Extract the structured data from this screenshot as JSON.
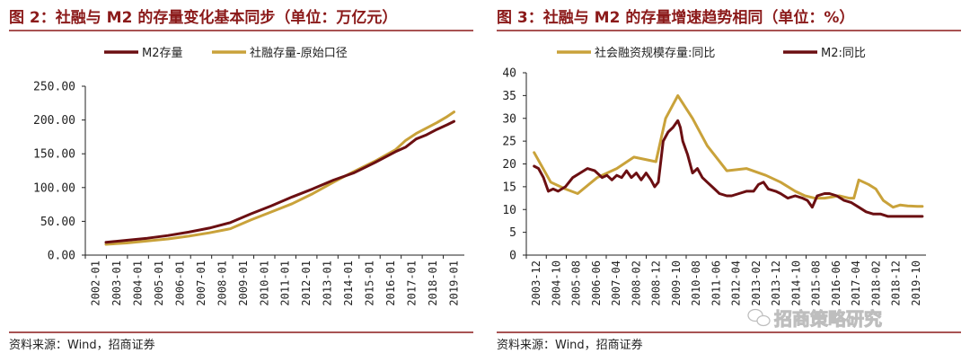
{
  "colors": {
    "m2": "#6b0f12",
    "gold": "#c9a23a",
    "rule": "#8b1a1a"
  },
  "watermark": {
    "icon": "wechat-icon",
    "text": "招商策略研究"
  },
  "chart_data": [
    {
      "type": "line",
      "title": "图 2：社融与 M2 的存量变化基本同步（单位：万亿元）",
      "source": "资料来源：Wind，招商证券",
      "x_tick_labels": [
        "2002-01",
        "2003-01",
        "2004-01",
        "2005-01",
        "2006-01",
        "2007-01",
        "2008-01",
        "2009-01",
        "2010-01",
        "2011-01",
        "2012-01",
        "2013-01",
        "2014-01",
        "2015-01",
        "2016-01",
        "2017-01",
        "2018-01",
        "2019-01"
      ],
      "y_tick_labels": [
        "0.00",
        "50.00",
        "100.00",
        "150.00",
        "200.00",
        "250.00"
      ],
      "ylim": [
        0,
        250
      ],
      "xlim": [
        2002.0,
        2020.33
      ],
      "legend_position": "top",
      "grid": false,
      "series": [
        {
          "name": "M2存量",
          "color_key": "m2",
          "x": [
            2003.0,
            2004.0,
            2005.0,
            2006.0,
            2007.0,
            2008.0,
            2009.0,
            2010.0,
            2011.0,
            2012.0,
            2013.0,
            2014.0,
            2015.0,
            2016.0,
            2017.0,
            2017.5,
            2018.0,
            2018.5,
            2019.0,
            2019.5,
            2019.83
          ],
          "y": [
            19,
            22,
            25,
            29,
            34,
            40,
            48,
            61,
            73,
            86,
            98,
            111,
            122,
            137,
            153,
            160,
            172,
            178,
            186,
            193,
            198
          ]
        },
        {
          "name": "社融存量-原始口径",
          "color_key": "gold",
          "x": [
            2003.0,
            2004.0,
            2005.0,
            2006.0,
            2007.0,
            2008.0,
            2009.0,
            2010.0,
            2011.0,
            2012.0,
            2013.0,
            2014.0,
            2015.0,
            2016.0,
            2017.0,
            2017.5,
            2018.0,
            2018.5,
            2019.0,
            2019.5,
            2019.83
          ],
          "y": [
            16,
            18,
            21,
            24,
            28,
            33,
            39,
            52,
            64,
            76,
            91,
            108,
            124,
            139,
            156,
            170,
            180,
            188,
            196,
            205,
            212
          ]
        }
      ]
    },
    {
      "type": "line",
      "title": "图 3：社融与 M2 的存量增速趋势相同（单位：%）",
      "source": "资料来源：Wind，招商证券",
      "x_tick_labels": [
        "2003-12",
        "2004-10",
        "2005-08",
        "2006-06",
        "2007-04",
        "2008-02",
        "2008-12",
        "2009-10",
        "2010-08",
        "2011-06",
        "2012-04",
        "2013-02",
        "2013-12",
        "2014-10",
        "2015-08",
        "2016-06",
        "2017-04",
        "2018-02",
        "2018-12",
        "2019-10"
      ],
      "y_tick_labels": [
        "0",
        "5",
        "10",
        "15",
        "20",
        "25",
        "30",
        "35",
        "40"
      ],
      "ylim": [
        0,
        40
      ],
      "xlim": [
        2003.6,
        2019.95
      ],
      "legend_position": "top",
      "grid": false,
      "series": [
        {
          "name": "社会融资规模存量:同比",
          "color_key": "gold",
          "x": [
            2003.92,
            2004.6,
            2005.2,
            2005.7,
            2006.5,
            2007.3,
            2008.0,
            2008.9,
            2009.3,
            2009.8,
            2010.4,
            2011.0,
            2011.8,
            2012.6,
            2013.4,
            2014.0,
            2014.6,
            2015.0,
            2015.4,
            2015.8,
            2016.4,
            2016.8,
            2017.0,
            2017.2,
            2017.6,
            2017.9,
            2018.2,
            2018.6,
            2018.9,
            2019.2,
            2019.6,
            2019.8
          ],
          "y": [
            22.5,
            16,
            14.5,
            13.5,
            17,
            19,
            21.5,
            20.5,
            30,
            35,
            30,
            24,
            18.5,
            19,
            17.5,
            16,
            14,
            13,
            12.5,
            12.5,
            13,
            12.5,
            12.5,
            16.5,
            15.5,
            14.5,
            12,
            10.5,
            11,
            10.8,
            10.7,
            10.7
          ]
        },
        {
          "name": "M2:同比",
          "color_key": "m2",
          "x": [
            2003.92,
            2004.1,
            2004.3,
            2004.5,
            2004.7,
            2004.9,
            2005.2,
            2005.5,
            2005.8,
            2006.1,
            2006.4,
            2006.7,
            2006.9,
            2007.1,
            2007.3,
            2007.5,
            2007.7,
            2007.9,
            2008.1,
            2008.3,
            2008.5,
            2008.7,
            2008.85,
            2009.0,
            2009.2,
            2009.4,
            2009.6,
            2009.8,
            2009.9,
            2010.0,
            2010.2,
            2010.4,
            2010.6,
            2010.8,
            2011.0,
            2011.2,
            2011.5,
            2011.8,
            2012.0,
            2012.3,
            2012.6,
            2012.9,
            2013.1,
            2013.3,
            2013.5,
            2013.8,
            2014.0,
            2014.3,
            2014.6,
            2014.9,
            2015.1,
            2015.3,
            2015.5,
            2015.8,
            2016.0,
            2016.3,
            2016.6,
            2016.9,
            2017.2,
            2017.5,
            2017.8,
            2018.1,
            2018.4,
            2018.7,
            2019.0,
            2019.3,
            2019.6,
            2019.8
          ],
          "y": [
            19.5,
            19,
            17,
            14,
            14.5,
            14,
            15,
            17,
            18,
            19,
            18.5,
            17,
            17.5,
            16.5,
            17.5,
            17,
            18.5,
            17,
            18,
            16.5,
            18,
            16.5,
            15,
            16,
            25,
            27,
            28,
            29.5,
            28,
            25,
            22,
            18,
            19,
            17,
            16,
            15,
            13.5,
            13,
            13,
            13.5,
            14,
            14,
            15.5,
            16,
            14.5,
            14,
            13.5,
            12.5,
            13,
            12.5,
            12,
            10.5,
            13,
            13.5,
            13.5,
            13,
            12,
            11.5,
            10.5,
            9.5,
            9,
            9,
            8.5,
            8.5,
            8.5,
            8.5,
            8.5,
            8.5
          ]
        }
      ]
    }
  ]
}
